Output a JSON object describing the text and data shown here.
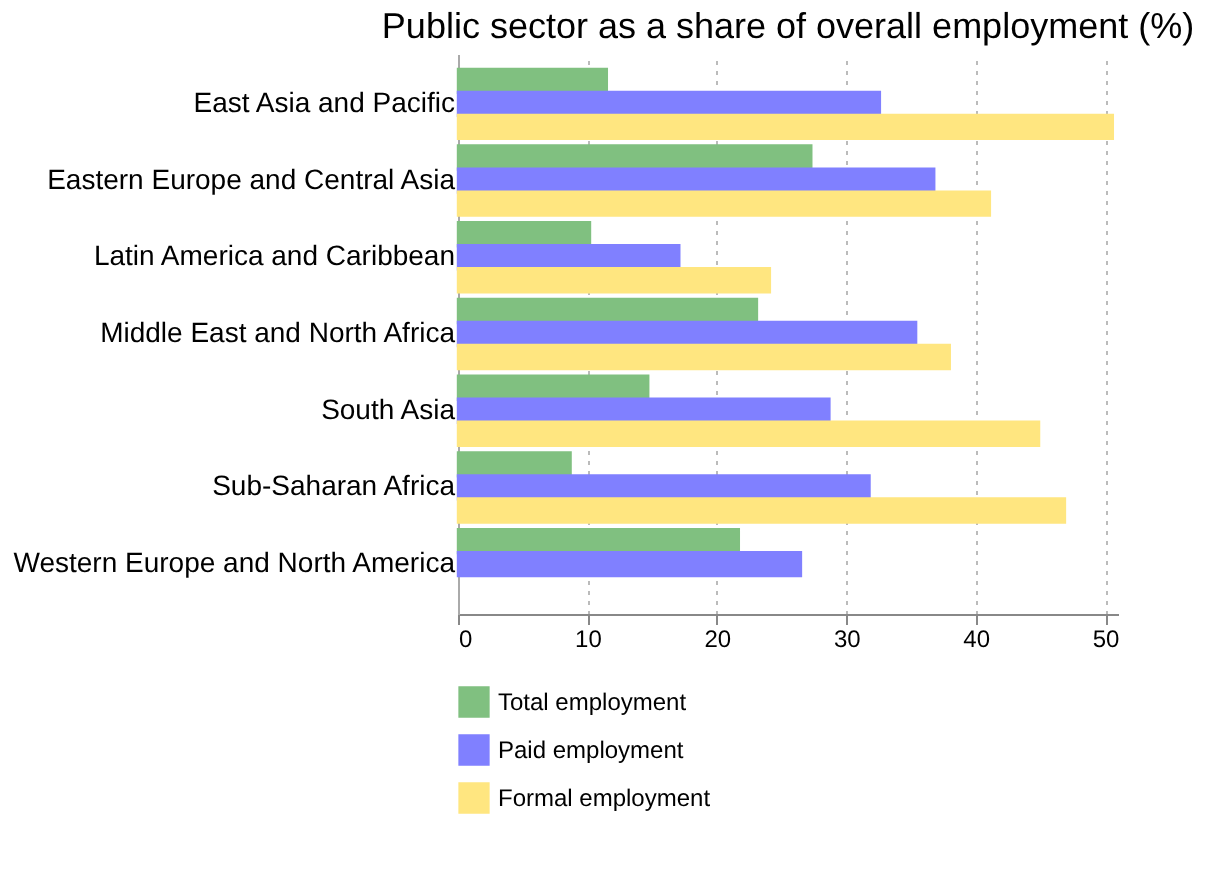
{
  "chart_data": {
    "type": "bar",
    "orientation": "horizontal",
    "title": "Public sector as a share of overall employment (%)",
    "categories": [
      "East Asia and Pacific",
      "Eastern Europe and Central Asia",
      "Latin America and Caribbean",
      "Middle East and North Africa",
      "South Asia",
      "Sub-Saharan Africa",
      "Western Europe and North America"
    ],
    "series": [
      {
        "name": "Total employment",
        "color": "#80c080",
        "values": [
          11.5,
          27.3,
          10.2,
          23.1,
          14.7,
          8.7,
          21.7
        ]
      },
      {
        "name": "Paid employment",
        "color": "#8080ff",
        "values": [
          32.6,
          36.8,
          17.1,
          35.4,
          28.7,
          31.8,
          26.5
        ]
      },
      {
        "name": "Formal employment",
        "color": "#ffe680",
        "values": [
          50.6,
          41.1,
          24.1,
          38.0,
          44.9,
          46.9,
          null
        ]
      }
    ],
    "xlim": [
      0,
      51
    ],
    "xticks": [
      0,
      10,
      20,
      30,
      40,
      50
    ],
    "grid": "x",
    "legend": "bottom"
  }
}
